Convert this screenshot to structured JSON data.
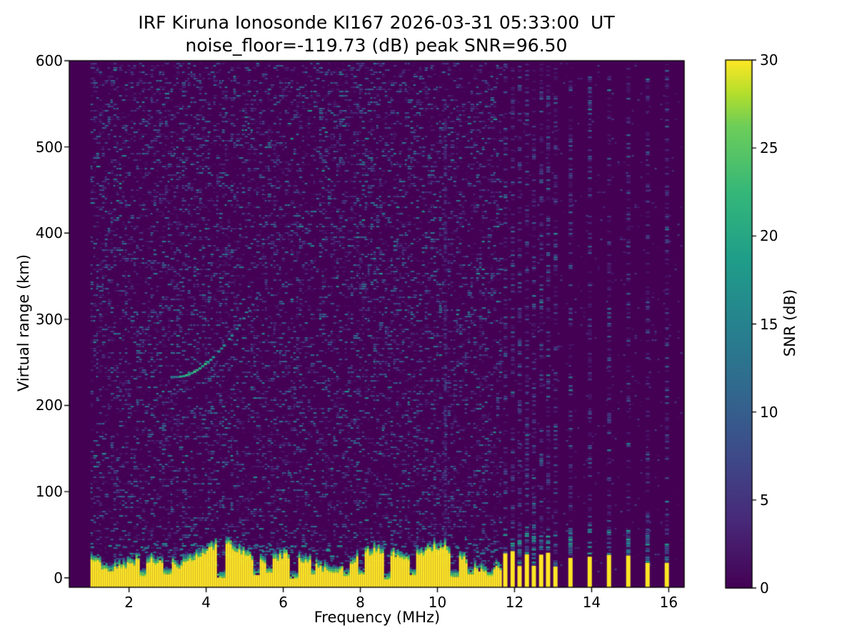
{
  "chart_data": {
    "type": "heatmap",
    "title": "IRF Kiruna Ionosonde KI167 2026-03-31 05:33:00  UT",
    "subtitle": "noise_floor=-119.73 (dB) peak SNR=96.50",
    "xlabel": "Frequency (MHz)",
    "ylabel": "Virtual range (km)",
    "colorbar_label": "SNR (dB)",
    "xlim": [
      0.45,
      16.4
    ],
    "ylim": [
      -11,
      600
    ],
    "clim": [
      0,
      30
    ],
    "xticks": [
      2,
      4,
      6,
      8,
      10,
      12,
      14,
      16
    ],
    "yticks": [
      0,
      100,
      200,
      300,
      400,
      500,
      600
    ],
    "colorbar_ticks": [
      0,
      5,
      10,
      15,
      20,
      25,
      30
    ],
    "colormap": "viridis",
    "colormap_stops": [
      [
        0.0,
        68,
        1,
        84
      ],
      [
        0.125,
        72,
        40,
        120
      ],
      [
        0.25,
        62,
        74,
        137
      ],
      [
        0.375,
        49,
        104,
        142
      ],
      [
        0.5,
        38,
        130,
        142
      ],
      [
        0.625,
        31,
        158,
        137
      ],
      [
        0.75,
        53,
        183,
        121
      ],
      [
        0.875,
        109,
        205,
        89
      ],
      [
        0.9375,
        180,
        222,
        44
      ],
      [
        1.0,
        253,
        231,
        37
      ]
    ],
    "sweep": {
      "start_mhz": 1.0,
      "continuous_end_mhz": 11.63,
      "dense_stripe_mhz": [
        11.76,
        11.95,
        12.13,
        12.32,
        12.5,
        12.69,
        12.87,
        13.06
      ],
      "sparse_stripe_mhz": [
        13.45,
        13.95,
        14.45,
        14.95,
        15.45,
        15.95
      ]
    },
    "ground_clutter": {
      "mean_top_km": 30,
      "max_top_km": 45,
      "notches": [
        [
          2.33,
          5,
          8
        ],
        [
          3.0,
          6,
          10
        ],
        [
          4.37,
          6,
          6
        ],
        [
          5.28,
          5,
          9
        ],
        [
          5.62,
          4,
          12
        ],
        [
          6.23,
          6,
          5
        ],
        [
          6.75,
          4,
          10
        ],
        [
          7.3,
          5,
          12
        ],
        [
          7.62,
          4,
          8
        ],
        [
          8.0,
          4,
          10
        ],
        [
          8.68,
          5,
          4
        ],
        [
          9.33,
          4,
          9
        ],
        [
          10.42,
          5,
          7
        ],
        [
          10.85,
          4,
          10
        ],
        [
          11.32,
          4,
          8
        ]
      ]
    },
    "rfi_column_mhz": [
      10.2
    ],
    "echo_trace": {
      "snr_db_peak": 22,
      "points_mhz_km": [
        [
          3.07,
          233
        ],
        [
          3.22,
          233
        ],
        [
          3.38,
          234
        ],
        [
          3.52,
          236
        ],
        [
          3.66,
          239
        ],
        [
          3.8,
          243
        ],
        [
          3.94,
          248
        ],
        [
          4.08,
          253
        ],
        [
          4.22,
          259
        ],
        [
          4.36,
          266
        ],
        [
          4.5,
          273
        ],
        [
          4.63,
          281
        ],
        [
          4.76,
          289
        ],
        [
          4.88,
          297
        ],
        [
          5.0,
          305
        ]
      ],
      "faint_points_mhz_km": [
        [
          5.1,
          311
        ],
        [
          5.18,
          318
        ],
        [
          5.27,
          325
        ],
        [
          5.36,
          332
        ]
      ]
    },
    "noise": {
      "seed": 1337,
      "density": 0.4
    }
  }
}
